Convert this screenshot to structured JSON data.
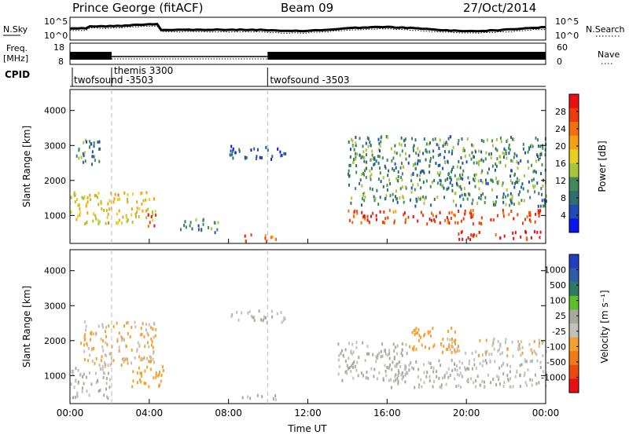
{
  "header": {
    "station": "Prince George (fitACF)",
    "beam": "Beam 09",
    "date": "27/Oct/2014"
  },
  "labels": {
    "nsky": "N.Sky",
    "nsearch": "N.Search",
    "freq_line1": "Freq.",
    "freq_line2": "[MHz]",
    "nave": "Nave",
    "cpid": "CPID"
  },
  "top_panels": {
    "noise_left_ticks": [
      "10^5",
      "10^0"
    ],
    "noise_right_ticks": [
      "10^5",
      "10^0"
    ],
    "freq_left_ticks": [
      "18",
      "8"
    ],
    "freq_right_ticks": [
      "60",
      "0"
    ]
  },
  "cpid_labels": [
    {
      "text": "twofsound -3503",
      "time_h": 0.0
    },
    {
      "text": "themis 3300",
      "time_h": 2.1
    },
    {
      "text": "twofsound -3503",
      "time_h": 9.97
    }
  ],
  "colors": {
    "power_scale": [
      "#0a14f0",
      "#1f4db5",
      "#2f6e6e",
      "#3f8a57",
      "#a8c43a",
      "#e8d01e",
      "#f5a012",
      "#f2700f",
      "#ee3a0c",
      "#e81010"
    ],
    "velocity_scale": [
      "#1f3fbf",
      "#2f5ea8",
      "#2e7a62",
      "#5cbf2a",
      "#a9a9a0",
      "#c2c2bc",
      "#f2a030",
      "#f07a18",
      "#ec4a10",
      "#e81010"
    ]
  },
  "chart_data": [
    {
      "type": "heatmap",
      "panel": "power",
      "xlabel": "",
      "ylabel": "Slant Range [km]",
      "xlim": [
        0,
        24
      ],
      "ylim": [
        200,
        4600
      ],
      "yticks": [
        "1000",
        "2000",
        "3000",
        "4000"
      ],
      "colorbar": {
        "label": "Power [dB]",
        "ticks": [
          "4",
          "8",
          "12",
          "16",
          "20",
          "24",
          "28"
        ],
        "range": [
          0,
          32
        ]
      },
      "regions": [
        {
          "t0": 0.0,
          "t1": 4.3,
          "r0": 800,
          "r1": 1700,
          "value": 18
        },
        {
          "t0": 0.0,
          "t1": 1.5,
          "r0": 2500,
          "r1": 3200,
          "value": 9
        },
        {
          "t0": 3.8,
          "t1": 4.3,
          "r0": 700,
          "r1": 1100,
          "value": 29
        },
        {
          "t0": 5.5,
          "t1": 7.5,
          "r0": 550,
          "r1": 950,
          "value": 10
        },
        {
          "t0": 8.0,
          "t1": 10.9,
          "r0": 2650,
          "r1": 3050,
          "value": 6
        },
        {
          "t0": 8.5,
          "t1": 10.5,
          "r0": 300,
          "r1": 500,
          "value": 25
        },
        {
          "t0": 14.0,
          "t1": 24.0,
          "r0": 800,
          "r1": 1200,
          "value": 27
        },
        {
          "t0": 19.5,
          "t1": 24.0,
          "r0": 350,
          "r1": 600,
          "value": 30
        },
        {
          "t0": 14.0,
          "t1": 24.0,
          "r0": 1300,
          "r1": 3300,
          "value": 10
        }
      ]
    },
    {
      "type": "heatmap",
      "panel": "velocity",
      "xlabel": "Time UT",
      "ylabel": "Slant Range [km]",
      "xlim": [
        0,
        24
      ],
      "ylim": [
        200,
        4600
      ],
      "yticks": [
        "1000",
        "2000",
        "3000",
        "4000"
      ],
      "xticks": [
        "00:00",
        "04:00",
        "08:00",
        "12:00",
        "16:00",
        "20:00",
        "00:00"
      ],
      "colorbar": {
        "label": "Velocity [m s⁻¹]",
        "ticks": [
          "1000",
          "500",
          "100",
          "25",
          "-25",
          "-100",
          "-500",
          "-1000"
        ],
        "range": [
          -1250,
          1250
        ]
      },
      "regions": [
        {
          "t0": 0.0,
          "t1": 2.0,
          "r0": 400,
          "r1": 1300,
          "value": 0
        },
        {
          "t0": 0.5,
          "t1": 4.3,
          "r0": 1300,
          "r1": 2600,
          "value": -250
        },
        {
          "t0": 3.0,
          "t1": 4.8,
          "r0": 700,
          "r1": 1300,
          "value": -400
        },
        {
          "t0": 8.0,
          "t1": 10.9,
          "r0": 2550,
          "r1": 2900,
          "value": 0
        },
        {
          "t0": 8.6,
          "t1": 10.5,
          "r0": 350,
          "r1": 500,
          "value": 60
        },
        {
          "t0": 13.5,
          "t1": 17.0,
          "r0": 900,
          "r1": 2000,
          "value": 30
        },
        {
          "t0": 17.0,
          "t1": 19.5,
          "r0": 1700,
          "r1": 2400,
          "value": -350
        },
        {
          "t0": 16.0,
          "t1": 24.0,
          "r0": 700,
          "r1": 1500,
          "value": 0
        },
        {
          "t0": 19.0,
          "t1": 24.0,
          "r0": 1600,
          "r1": 2100,
          "value": -200
        }
      ]
    }
  ]
}
